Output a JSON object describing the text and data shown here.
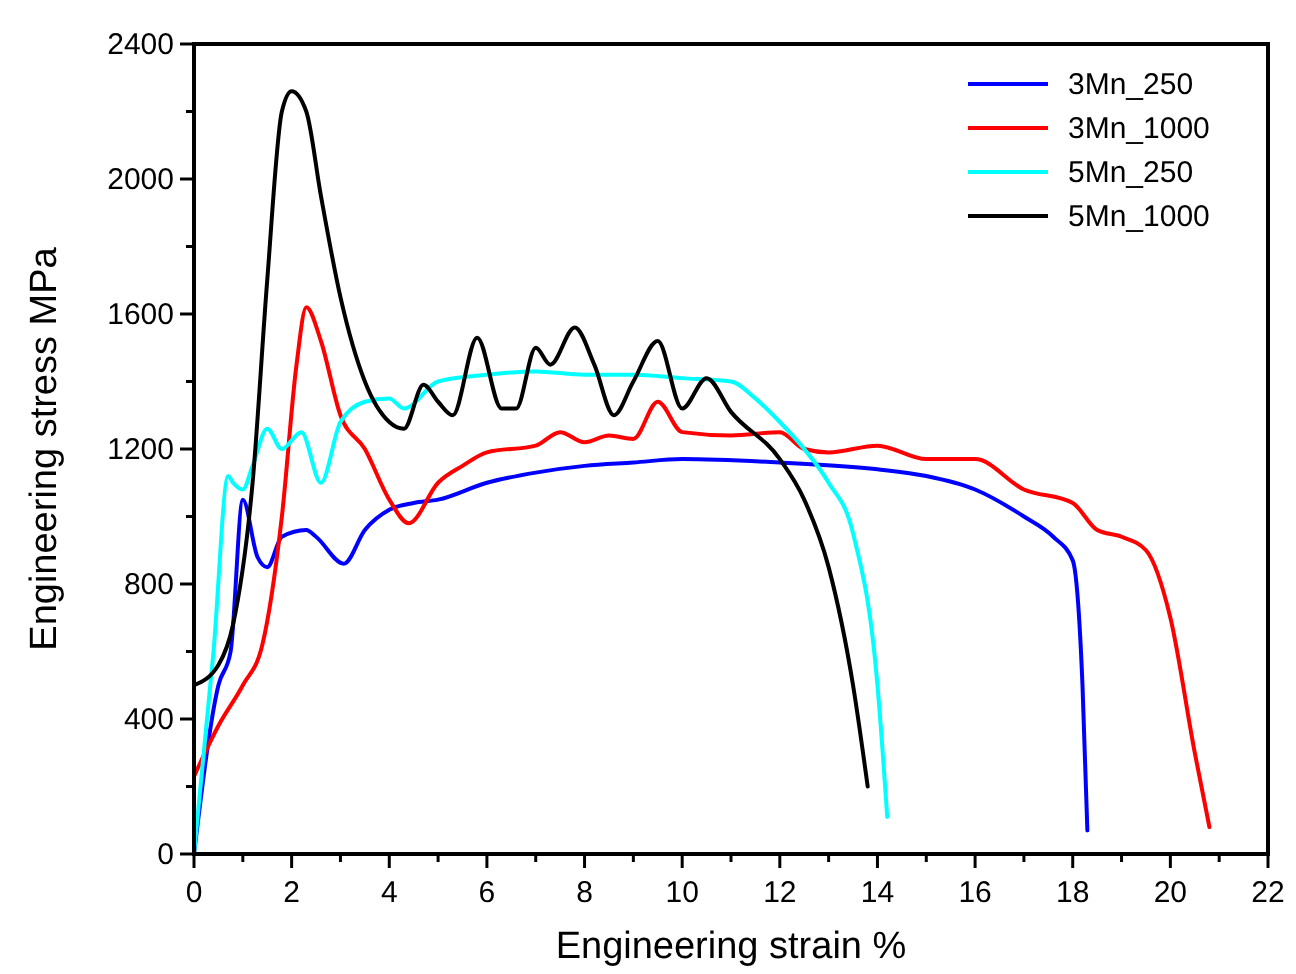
{
  "chart_data": {
    "type": "line",
    "xlabel": "Engineering strain %",
    "ylabel": "Engineering stress MPa",
    "xlim": [
      0,
      22
    ],
    "ylim": [
      0,
      2400
    ],
    "xticks": [
      0,
      {
        "value": 1,
        "label": null
      },
      2,
      {
        "value": 3,
        "label": null
      },
      4,
      {
        "value": 5,
        "label": null
      },
      6,
      {
        "value": 7,
        "label": null
      },
      8,
      {
        "value": 9,
        "label": null
      },
      10,
      {
        "value": 11,
        "label": null
      },
      12,
      {
        "value": 13,
        "label": null
      },
      14,
      {
        "value": 15,
        "label": null
      },
      16,
      {
        "value": 17,
        "label": null
      },
      18,
      {
        "value": 19,
        "label": null
      },
      20,
      {
        "value": 21,
        "label": null
      },
      22
    ],
    "yticks": [
      0,
      {
        "value": 200,
        "label": null
      },
      400,
      {
        "value": 600,
        "label": null
      },
      800,
      {
        "value": 1000,
        "label": null
      },
      1200,
      {
        "value": 1400,
        "label": null
      },
      1600,
      {
        "value": 1800,
        "label": null
      },
      2000,
      {
        "value": 2200,
        "label": null
      },
      2400
    ],
    "legend": "top right",
    "grid": false,
    "line_style": "solid",
    "series": [
      {
        "name": "3Mn_250",
        "color": "#0000ff",
        "x": [
          0,
          0.5,
          0.75,
          1.0,
          1.3,
          1.5,
          1.8,
          2.3,
          2.5,
          3.07,
          3.5,
          4,
          4.5,
          5,
          6,
          7,
          8,
          9,
          10,
          12,
          14,
          15,
          16,
          17,
          17.6,
          18.0,
          18.2,
          18.3
        ],
        "values": [
          0,
          500,
          600,
          1050,
          880,
          850,
          940,
          960,
          940,
          860,
          960,
          1020,
          1040,
          1050,
          1100,
          1130,
          1150,
          1160,
          1170,
          1160,
          1140,
          1120,
          1080,
          1000,
          940,
          870,
          500,
          70
        ]
      },
      {
        "name": "3Mn_1000",
        "color": "#ff0000",
        "x": [
          0,
          0.5,
          1,
          1.4,
          1.8,
          2.1,
          2.3,
          2.6,
          3,
          3.5,
          4,
          4.4,
          5,
          5.5,
          6,
          7,
          7.5,
          8,
          8.5,
          9,
          9.5,
          10,
          11,
          12,
          12.5,
          13,
          14,
          15,
          16,
          17,
          18,
          18.5,
          19,
          19.5,
          20,
          20.5,
          20.8
        ],
        "values": [
          230,
          380,
          500,
          620,
          1000,
          1450,
          1620,
          1520,
          1300,
          1200,
          1050,
          980,
          1100,
          1150,
          1190,
          1210,
          1250,
          1220,
          1240,
          1230,
          1340,
          1250,
          1240,
          1250,
          1200,
          1190,
          1210,
          1170,
          1170,
          1080,
          1040,
          960,
          940,
          900,
          700,
          300,
          80
        ]
      },
      {
        "name": "5Mn_250",
        "color": "#00ffff",
        "x": [
          0,
          0.4,
          0.7,
          0.8,
          1.0,
          1.2,
          1.5,
          1.8,
          2.2,
          2.6,
          3,
          3.5,
          4,
          4.3,
          5,
          6,
          7,
          8,
          9,
          10,
          11,
          11.5,
          12,
          12.5,
          13,
          13.5,
          14,
          14.2
        ],
        "values": [
          0,
          600,
          1120,
          1100,
          1080,
          1150,
          1260,
          1200,
          1250,
          1100,
          1280,
          1340,
          1350,
          1320,
          1400,
          1420,
          1430,
          1420,
          1420,
          1410,
          1400,
          1350,
          1280,
          1200,
          1100,
          950,
          500,
          110
        ]
      },
      {
        "name": "5Mn_1000",
        "color": "#000000",
        "x": [
          0,
          0.5,
          0.8,
          1.2,
          1.5,
          1.8,
          2.0,
          2.3,
          2.6,
          3,
          3.5,
          4,
          4.3,
          4.7,
          5,
          5.3,
          5.8,
          6.3,
          6.6,
          7,
          7.3,
          7.8,
          8.2,
          8.6,
          9,
          9.5,
          10,
          10.5,
          11,
          12,
          12.5,
          13,
          13.5,
          13.8
        ],
        "values": [
          500,
          560,
          680,
          1100,
          1700,
          2200,
          2260,
          2200,
          1950,
          1650,
          1400,
          1280,
          1260,
          1390,
          1340,
          1300,
          1530,
          1320,
          1320,
          1500,
          1450,
          1560,
          1450,
          1300,
          1400,
          1520,
          1320,
          1410,
          1310,
          1170,
          1050,
          850,
          500,
          200
        ]
      }
    ]
  }
}
